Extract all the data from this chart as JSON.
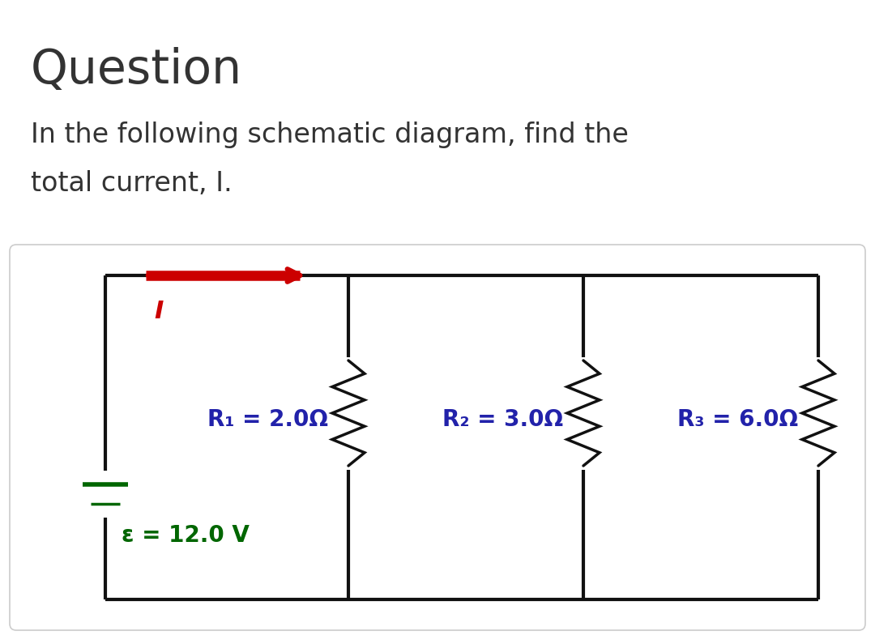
{
  "title": "Question",
  "subtitle_line1": "In the following schematic diagram, find the",
  "subtitle_line2": "total current, I.",
  "background_color": "#ffffff",
  "panel_bg": "#ffffff",
  "panel_border": "#cccccc",
  "circuit_color": "#111111",
  "arrow_color": "#cc0000",
  "battery_color": "#006600",
  "r_label_color": "#2222aa",
  "emf_color": "#006600",
  "I_color": "#cc0000",
  "R1_label": "R₁ = 2.0Ω",
  "R2_label": "R₂ = 3.0Ω",
  "R3_label": "R₃ = 6.0Ω",
  "emf_label": "ε = 12.0 V",
  "I_label": "I",
  "title_fontsize": 42,
  "subtitle_fontsize": 24,
  "circuit_lw": 3.0,
  "resistor_lw": 2.5,
  "battery_lw_thick": 4.0,
  "battery_lw_thin": 2.5
}
